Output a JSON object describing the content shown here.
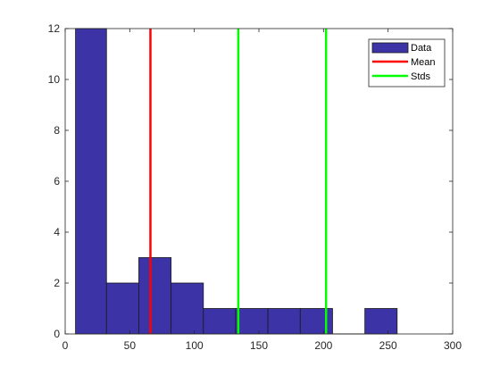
{
  "chart_data": {
    "type": "bar",
    "histogram": true,
    "bins": [
      {
        "x_start": 8,
        "x_end": 32,
        "count": 12
      },
      {
        "x_start": 32,
        "x_end": 57,
        "count": 2
      },
      {
        "x_start": 57,
        "x_end": 82,
        "count": 3
      },
      {
        "x_start": 82,
        "x_end": 107,
        "count": 2
      },
      {
        "x_start": 107,
        "x_end": 132,
        "count": 1
      },
      {
        "x_start": 132,
        "x_end": 157,
        "count": 1
      },
      {
        "x_start": 157,
        "x_end": 182,
        "count": 1
      },
      {
        "x_start": 182,
        "x_end": 207,
        "count": 1
      },
      {
        "x_start": 207,
        "x_end": 232,
        "count": 0
      },
      {
        "x_start": 232,
        "x_end": 257,
        "count": 1
      }
    ],
    "vertical_lines": [
      {
        "series": "Mean",
        "x": 66
      },
      {
        "series": "Stds",
        "x": 134
      },
      {
        "series": "Stds",
        "x": 202
      }
    ],
    "xlim": [
      0,
      300
    ],
    "ylim": [
      0,
      12
    ],
    "xticks": [
      0,
      50,
      100,
      150,
      200,
      250,
      300
    ],
    "yticks": [
      0,
      2,
      4,
      6,
      8,
      10,
      12
    ],
    "title": "",
    "xlabel": "",
    "ylabel": "",
    "grid": false,
    "legend": {
      "position": "top-right",
      "entries": [
        {
          "label": "Data",
          "kind": "patch",
          "color": "#3C33A6",
          "edge": "#1A1A1A"
        },
        {
          "label": "Mean",
          "kind": "line",
          "color": "#FF0000"
        },
        {
          "label": "Stds",
          "kind": "line",
          "color": "#00FF00"
        }
      ]
    },
    "colors": {
      "bar_fill": "#3C33A6",
      "bar_edge": "#1A1A1A",
      "mean_line": "#FF0000",
      "std_line": "#00FF00",
      "axis": "#262626"
    }
  }
}
